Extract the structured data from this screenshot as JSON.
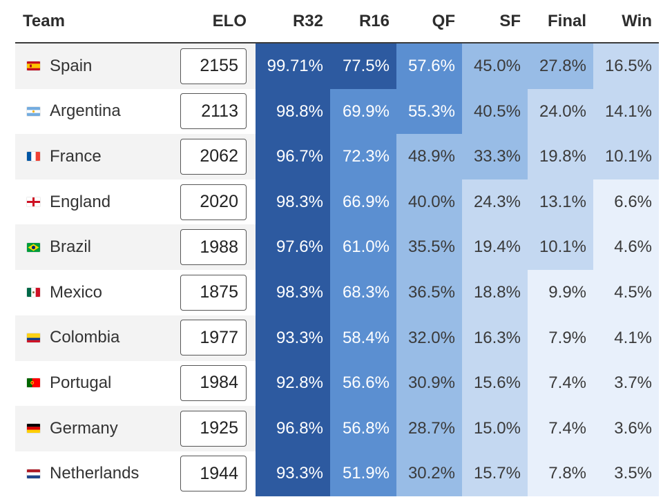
{
  "headers": {
    "team": "Team",
    "elo": "ELO",
    "r32": "R32",
    "r16": "R16",
    "qf": "QF",
    "sf": "SF",
    "final": "Final",
    "win": "Win"
  },
  "colors": {
    "shade1": "#2d5aa0",
    "shade2": "#5b8fd1",
    "shade3": "#98bce6",
    "shade4": "#c4d8f1",
    "shade5": "#e8f0fb",
    "row_alt": "#f3f3f3"
  },
  "rows": [
    {
      "team": "Spain",
      "flag": "spain-flag-icon",
      "elo": "2155",
      "r32": "99.71%",
      "r16": "77.5%",
      "qf": "57.6%",
      "sf": "45.0%",
      "final": "27.8%",
      "win": "16.5%",
      "shades": [
        0,
        0,
        1,
        2,
        2,
        3
      ]
    },
    {
      "team": "Argentina",
      "flag": "argentina-flag-icon",
      "elo": "2113",
      "r32": "98.8%",
      "r16": "69.9%",
      "qf": "55.3%",
      "sf": "40.5%",
      "final": "24.0%",
      "win": "14.1%",
      "shades": [
        0,
        1,
        1,
        2,
        3,
        3
      ]
    },
    {
      "team": "France",
      "flag": "france-flag-icon",
      "elo": "2062",
      "r32": "96.7%",
      "r16": "72.3%",
      "qf": "48.9%",
      "sf": "33.3%",
      "final": "19.8%",
      "win": "10.1%",
      "shades": [
        0,
        1,
        2,
        2,
        3,
        3
      ]
    },
    {
      "team": "England",
      "flag": "england-flag-icon",
      "elo": "2020",
      "r32": "98.3%",
      "r16": "66.9%",
      "qf": "40.0%",
      "sf": "24.3%",
      "final": "13.1%",
      "win": "6.6%",
      "shades": [
        0,
        1,
        2,
        3,
        3,
        4
      ]
    },
    {
      "team": "Brazil",
      "flag": "brazil-flag-icon",
      "elo": "1988",
      "r32": "97.6%",
      "r16": "61.0%",
      "qf": "35.5%",
      "sf": "19.4%",
      "final": "10.1%",
      "win": "4.6%",
      "shades": [
        0,
        1,
        2,
        3,
        3,
        4
      ]
    },
    {
      "team": "Mexico",
      "flag": "mexico-flag-icon",
      "elo": "1875",
      "r32": "98.3%",
      "r16": "68.3%",
      "qf": "36.5%",
      "sf": "18.8%",
      "final": "9.9%",
      "win": "4.5%",
      "shades": [
        0,
        1,
        2,
        3,
        4,
        4
      ]
    },
    {
      "team": "Colombia",
      "flag": "colombia-flag-icon",
      "elo": "1977",
      "r32": "93.3%",
      "r16": "58.4%",
      "qf": "32.0%",
      "sf": "16.3%",
      "final": "7.9%",
      "win": "4.1%",
      "shades": [
        0,
        1,
        2,
        3,
        4,
        4
      ]
    },
    {
      "team": "Portugal",
      "flag": "portugal-flag-icon",
      "elo": "1984",
      "r32": "92.8%",
      "r16": "56.6%",
      "qf": "30.9%",
      "sf": "15.6%",
      "final": "7.4%",
      "win": "3.7%",
      "shades": [
        0,
        1,
        2,
        3,
        4,
        4
      ]
    },
    {
      "team": "Germany",
      "flag": "germany-flag-icon",
      "elo": "1925",
      "r32": "96.8%",
      "r16": "56.8%",
      "qf": "28.7%",
      "sf": "15.0%",
      "final": "7.4%",
      "win": "3.6%",
      "shades": [
        0,
        1,
        2,
        3,
        4,
        4
      ]
    },
    {
      "team": "Netherlands",
      "flag": "netherlands-flag-icon",
      "elo": "1944",
      "r32": "93.3%",
      "r16": "51.9%",
      "qf": "30.2%",
      "sf": "15.7%",
      "final": "7.8%",
      "win": "3.5%",
      "shades": [
        0,
        1,
        2,
        3,
        4,
        4
      ]
    }
  ]
}
